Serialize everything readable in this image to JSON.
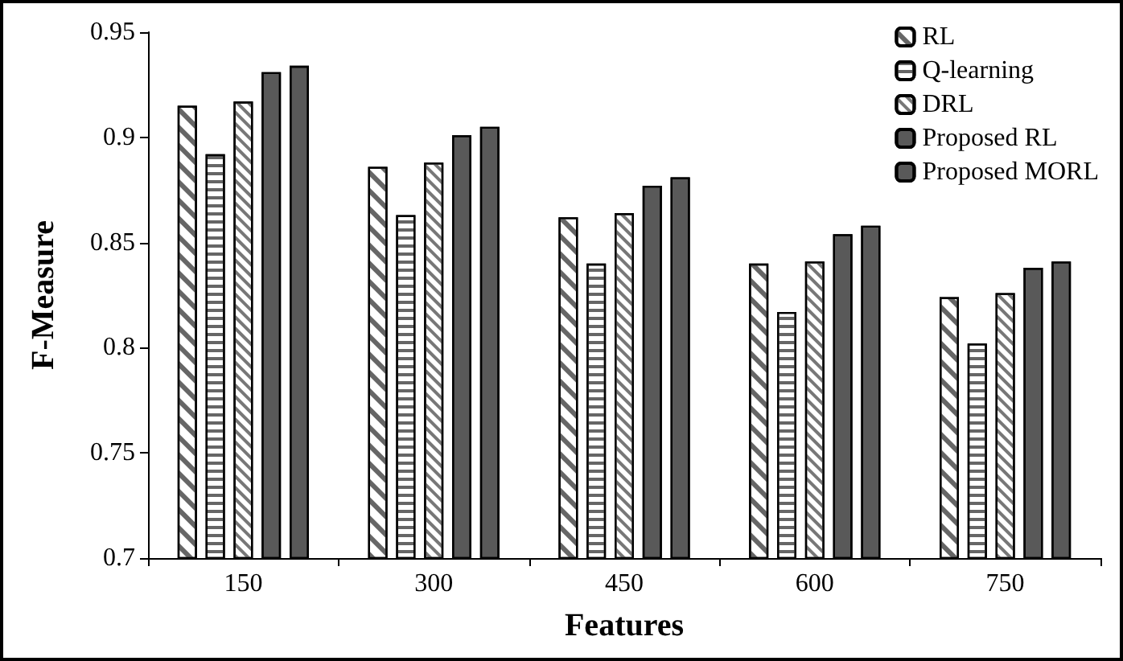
{
  "chart_data": {
    "type": "bar",
    "xlabel": "Features",
    "ylabel": "F-Measure",
    "categories": [
      "150",
      "300",
      "450",
      "600",
      "750"
    ],
    "series": [
      {
        "name": "RL",
        "color": "#ffffff",
        "values": [
          0.915,
          0.886,
          0.862,
          0.84,
          0.824
        ]
      },
      {
        "name": "Q-learning",
        "color": "#ffffff",
        "values": [
          0.892,
          0.863,
          0.84,
          0.817,
          0.802
        ]
      },
      {
        "name": "DRL",
        "color": "#ffffff",
        "values": [
          0.917,
          0.888,
          0.864,
          0.841,
          0.826
        ]
      },
      {
        "name": "Proposed RL",
        "color": "#595959",
        "values": [
          0.931,
          0.901,
          0.877,
          0.854,
          0.838
        ]
      },
      {
        "name": "Proposed MORL",
        "color": "#595959",
        "values": [
          0.934,
          0.905,
          0.881,
          0.858,
          0.841
        ]
      }
    ],
    "ylim": [
      0.7,
      0.95
    ],
    "yticks": [
      0.7,
      0.75,
      0.8,
      0.85,
      0.9,
      0.95
    ],
    "grid": false,
    "legend": "top right"
  }
}
